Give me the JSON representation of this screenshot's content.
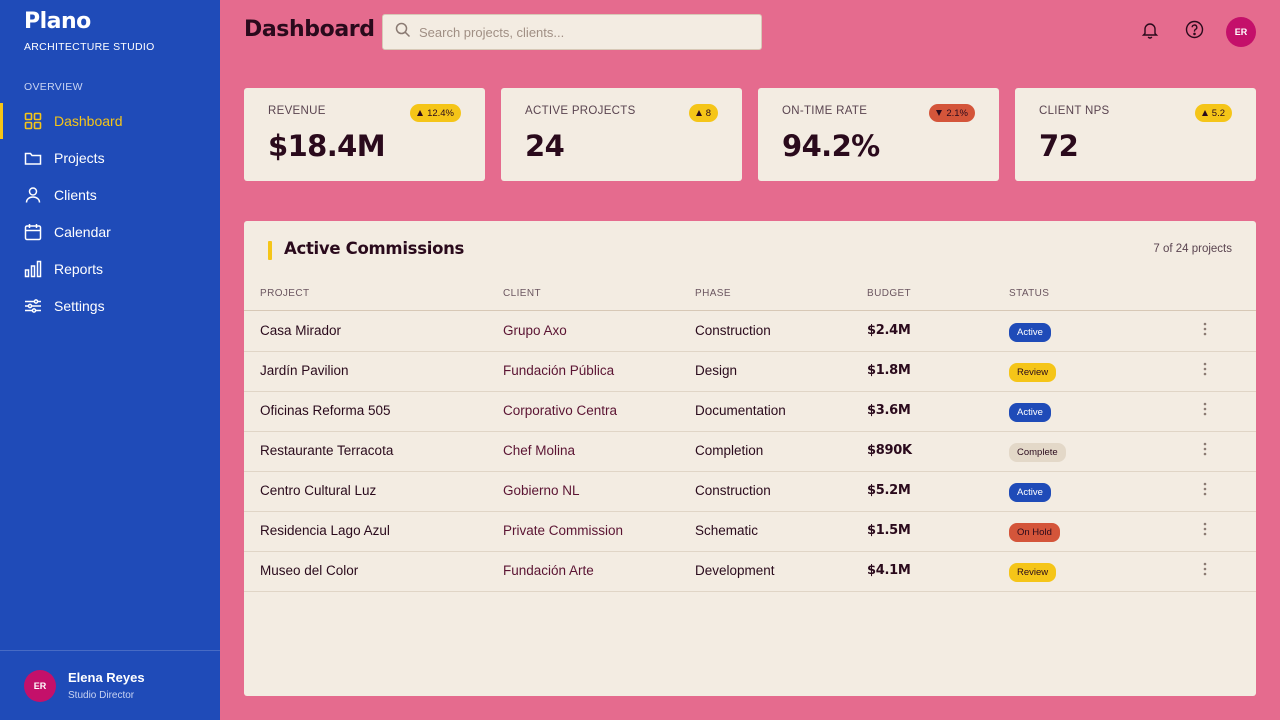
{
  "brand": {
    "name": "Plano",
    "subtitle": "ARCHITECTURE STUDIO"
  },
  "nav": {
    "section_label": "OVERVIEW",
    "items": [
      {
        "label": "Dashboard",
        "icon": "grid-icon",
        "active": true
      },
      {
        "label": "Projects",
        "icon": "folder-icon"
      },
      {
        "label": "Clients",
        "icon": "user-icon"
      },
      {
        "label": "Calendar",
        "icon": "calendar-icon"
      },
      {
        "label": "Reports",
        "icon": "bar-chart-icon"
      },
      {
        "label": "Settings",
        "icon": "sliders-icon"
      }
    ]
  },
  "user": {
    "initials": "ER",
    "name": "Elena Reyes",
    "role": "Studio Director"
  },
  "header": {
    "title": "Dashboard",
    "search_placeholder": "Search projects, clients...",
    "avatar_initials": "ER"
  },
  "kpis": [
    {
      "label": "REVENUE",
      "value": "$18.4M",
      "delta": "12.4%",
      "trend": "up"
    },
    {
      "label": "ACTIVE PROJECTS",
      "value": "24",
      "delta": "8",
      "trend": "up"
    },
    {
      "label": "ON-TIME RATE",
      "value": "94.2%",
      "delta": "2.1%",
      "trend": "down"
    },
    {
      "label": "CLIENT NPS",
      "value": "72",
      "delta": "5.2",
      "trend": "up"
    }
  ],
  "commissions": {
    "title": "Active Commissions",
    "count_text": "7 of 24 projects",
    "columns": [
      "PROJECT",
      "CLIENT",
      "PHASE",
      "BUDGET",
      "STATUS"
    ],
    "rows": [
      {
        "project": "Casa Mirador",
        "client": "Grupo Axo",
        "phase": "Construction",
        "budget": "$2.4M",
        "status": "Active"
      },
      {
        "project": "Jardín Pavilion",
        "client": "Fundación Pública",
        "phase": "Design",
        "budget": "$1.8M",
        "status": "Review"
      },
      {
        "project": "Oficinas Reforma 505",
        "client": "Corporativo Centra",
        "phase": "Documentation",
        "budget": "$3.6M",
        "status": "Active"
      },
      {
        "project": "Restaurante Terracota",
        "client": "Chef Molina",
        "phase": "Completion",
        "budget": "$890K",
        "status": "Complete"
      },
      {
        "project": "Centro Cultural Luz",
        "client": "Gobierno NL",
        "phase": "Construction",
        "budget": "$5.2M",
        "status": "Active"
      },
      {
        "project": "Residencia Lago Azul",
        "client": "Private Commission",
        "phase": "Schematic",
        "budget": "$1.5M",
        "status": "On Hold"
      },
      {
        "project": "Museo del Color",
        "client": "Fundación Arte",
        "phase": "Development",
        "budget": "$4.1M",
        "status": "Review"
      }
    ]
  },
  "colors": {
    "page_bg": "#e56b8e",
    "sidebar_bg": "#1f4bb8",
    "accent_yellow": "#f5c518",
    "card_bg": "#f3ece2",
    "avatar_bg": "#c4106a",
    "status_active": "#1f4bb8",
    "status_review": "#f5c518",
    "status_complete": "#e3d8c8",
    "status_hold": "#d4553a"
  }
}
